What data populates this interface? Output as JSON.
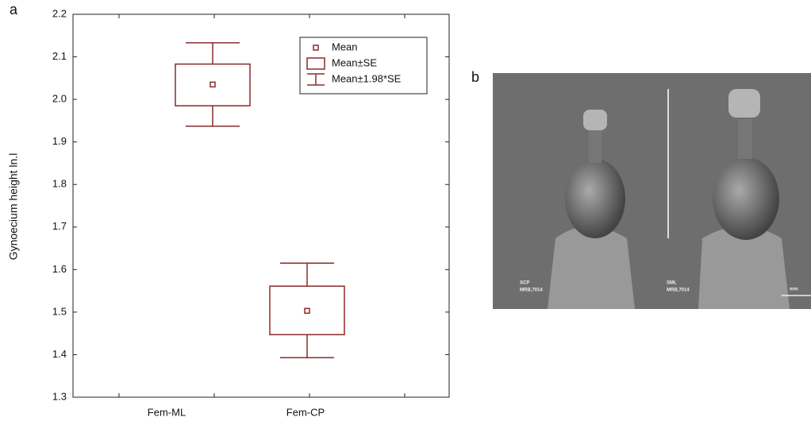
{
  "panel_a_label": "a",
  "panel_b_label": "b",
  "chart_data": {
    "type": "meanbox",
    "y_label": "Gynoecium height ln.l",
    "categories": [
      "Fem-ML",
      "Fem-CP"
    ],
    "mean": [
      2.035,
      1.503
    ],
    "se_lower": [
      1.985,
      1.447
    ],
    "se_upper": [
      2.083,
      1.561
    ],
    "ci_lower": [
      1.937,
      1.393
    ],
    "ci_upper": [
      2.133,
      1.615
    ],
    "color": "#8b2a2a",
    "ylim": [
      1.3,
      2.2
    ],
    "yticks": [
      1.3,
      1.4,
      1.5,
      1.6,
      1.7,
      1.8,
      1.9,
      {
        "value": 2,
        "label": "2.0"
      },
      2.1,
      2.2
    ],
    "legend": [
      "Mean",
      "Mean±SE",
      "Mean±1.98*SE"
    ]
  },
  "photo": {
    "left_label": [
      "SCP",
      "MRB,7014"
    ],
    "right_label": [
      "SML",
      "MRB,7014"
    ],
    "scale_label": "mm"
  }
}
